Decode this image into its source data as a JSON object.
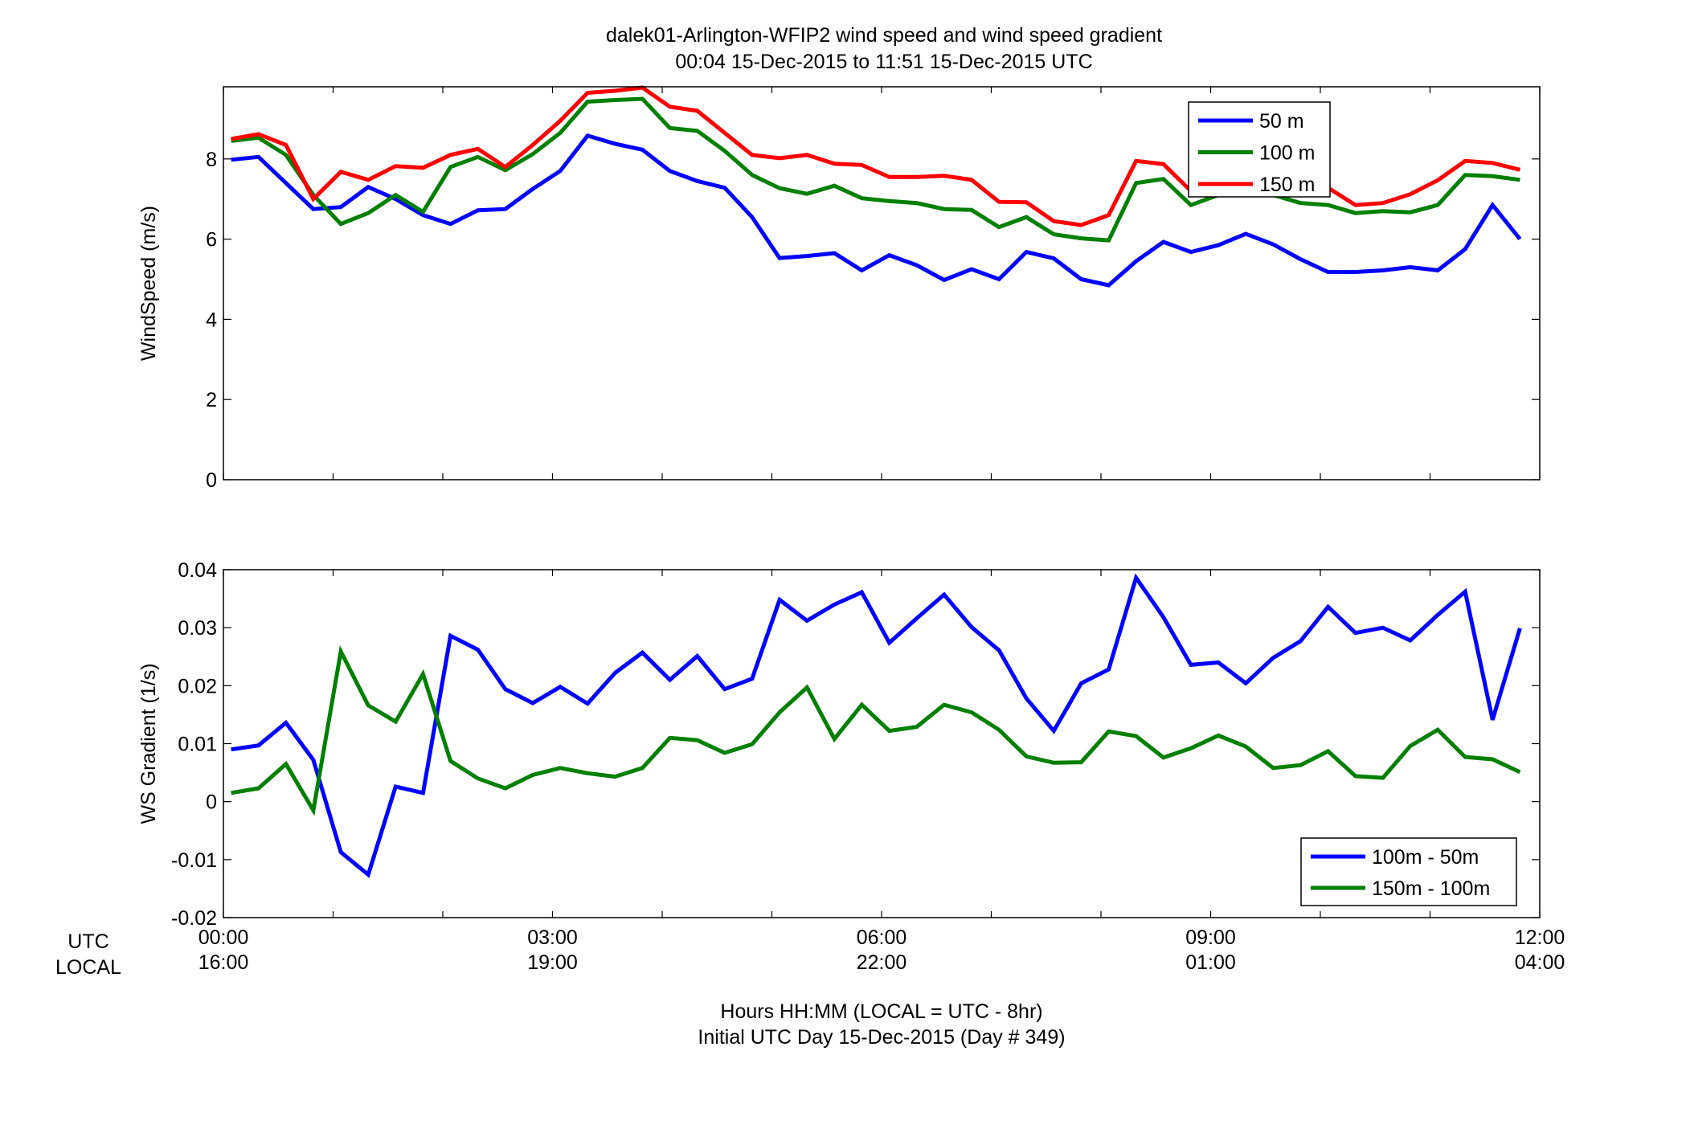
{
  "figure": {
    "title_line1": "dalek01-Arlington-WFIP2  wind speed and wind speed gradient",
    "title_line2": "00:04 15-Dec-2015 to 11:51 15-Dec-2015  UTC",
    "xlabel_line1": "Hours HH:MM  (LOCAL = UTC - 8hr)",
    "xlabel_line2": "Initial UTC Day 15-Dec-2015 (Day # 349)",
    "row_label_utc": "UTC",
    "row_label_local": "LOCAL",
    "utc_ticks": [
      "00:00",
      "03:00",
      "06:00",
      "09:00",
      "12:00"
    ],
    "local_ticks": [
      "16:00",
      "19:00",
      "22:00",
      "01:00",
      "04:00"
    ]
  },
  "chart_data": [
    {
      "type": "line",
      "ylabel": "WindSpeed (m/s)",
      "xlim": [
        0,
        12
      ],
      "ylim": [
        0,
        9.8
      ],
      "yticks": [
        0,
        2,
        4,
        6,
        8
      ],
      "grid": false,
      "legend_position": "top-right",
      "x": [
        0.07,
        0.32,
        0.57,
        0.82,
        1.07,
        1.32,
        1.57,
        1.82,
        2.07,
        2.32,
        2.57,
        2.82,
        3.07,
        3.32,
        3.57,
        3.82,
        4.07,
        4.32,
        4.57,
        4.82,
        5.07,
        5.32,
        5.57,
        5.82,
        6.07,
        6.32,
        6.57,
        6.82,
        7.07,
        7.32,
        7.57,
        7.82,
        8.07,
        8.32,
        8.57,
        8.82,
        9.07,
        9.32,
        9.57,
        9.82,
        10.07,
        10.32,
        10.57,
        10.82,
        11.07,
        11.32,
        11.57,
        11.82
      ],
      "series": [
        {
          "name": "50 m",
          "color": "#0000ff",
          "values": [
            7.98,
            8.05,
            7.4,
            6.75,
            6.8,
            7.3,
            7.0,
            6.6,
            6.38,
            6.72,
            6.75,
            7.25,
            7.7,
            8.58,
            8.38,
            8.23,
            7.7,
            7.45,
            7.28,
            6.55,
            5.53,
            5.58,
            5.65,
            5.22,
            5.6,
            5.35,
            4.98,
            5.25,
            5.0,
            5.68,
            5.52,
            5.0,
            4.85,
            5.45,
            5.93,
            5.68,
            5.85,
            6.13,
            5.87,
            5.5,
            5.18,
            5.18,
            5.22,
            5.3,
            5.22,
            5.75,
            6.85,
            6.0
          ]
        },
        {
          "name": "100 m",
          "color": "#007f00",
          "values": [
            8.45,
            8.53,
            8.1,
            7.1,
            6.38,
            6.65,
            7.1,
            6.68,
            7.8,
            8.05,
            7.72,
            8.12,
            8.65,
            9.43,
            9.47,
            9.5,
            8.77,
            8.7,
            8.2,
            7.6,
            7.27,
            7.13,
            7.33,
            7.02,
            6.95,
            6.9,
            6.75,
            6.73,
            6.3,
            6.55,
            6.12,
            6.02,
            5.97,
            7.4,
            7.5,
            6.85,
            7.1,
            7.4,
            7.1,
            6.9,
            6.85,
            6.65,
            6.7,
            6.67,
            6.85,
            7.6,
            7.57,
            7.48
          ]
        },
        {
          "name": "150 m",
          "color": "#ff0000",
          "values": [
            8.5,
            8.62,
            8.35,
            7.0,
            7.68,
            7.48,
            7.82,
            7.78,
            8.1,
            8.25,
            7.8,
            8.35,
            8.95,
            9.65,
            9.7,
            9.78,
            9.3,
            9.2,
            8.65,
            8.1,
            8.02,
            8.1,
            7.88,
            7.85,
            7.55,
            7.55,
            7.58,
            7.48,
            6.93,
            6.92,
            6.45,
            6.35,
            6.6,
            7.95,
            7.87,
            7.2,
            7.25,
            7.35,
            7.52,
            7.45,
            7.28,
            6.85,
            6.9,
            7.12,
            7.47,
            7.95,
            7.9,
            7.73
          ]
        }
      ]
    },
    {
      "type": "line",
      "ylabel": "WS Gradient (1/s)",
      "xlim": [
        0,
        12
      ],
      "ylim": [
        -0.02,
        0.04
      ],
      "yticks": [
        -0.02,
        -0.01,
        0,
        0.01,
        0.02,
        0.03,
        0.04
      ],
      "ytick_labels": [
        "-0.02",
        "-0.01",
        "0",
        "0.01",
        "0.02",
        "0.03",
        "0.04"
      ],
      "grid": false,
      "legend_position": "bottom-right",
      "x": [
        0.07,
        0.32,
        0.57,
        0.82,
        1.07,
        1.32,
        1.57,
        1.82,
        2.07,
        2.32,
        2.57,
        2.82,
        3.07,
        3.32,
        3.57,
        3.82,
        4.07,
        4.32,
        4.57,
        4.82,
        5.07,
        5.32,
        5.57,
        5.82,
        6.07,
        6.32,
        6.57,
        6.82,
        7.07,
        7.32,
        7.57,
        7.82,
        8.07,
        8.32,
        8.57,
        8.82,
        9.07,
        9.32,
        9.57,
        9.82,
        10.07,
        10.32,
        10.57,
        10.82,
        11.07,
        11.32,
        11.57,
        11.82
      ],
      "series": [
        {
          "name": "100m - 50m",
          "color": "#0000ff",
          "values": [
            0.009,
            0.0097,
            0.0136,
            0.0072,
            -0.0087,
            -0.0126,
            0.0026,
            0.0015,
            0.0286,
            0.0262,
            0.0194,
            0.017,
            0.0198,
            0.0169,
            0.0222,
            0.0257,
            0.021,
            0.0251,
            0.0194,
            0.0212,
            0.0348,
            0.0312,
            0.034,
            0.0361,
            0.0274,
            0.0316,
            0.0357,
            0.0301,
            0.0261,
            0.0178,
            0.0122,
            0.0204,
            0.0228,
            0.0386,
            0.0318,
            0.0236,
            0.024,
            0.0204,
            0.0248,
            0.0277,
            0.0336,
            0.0291,
            0.03,
            0.0278,
            0.0322,
            0.0362,
            0.0141,
            0.0299
          ]
        },
        {
          "name": "150m - 100m",
          "color": "#007f00",
          "values": [
            0.0015,
            0.0023,
            0.0065,
            -0.0015,
            0.0259,
            0.0166,
            0.0138,
            0.022,
            0.007,
            0.004,
            0.0023,
            0.0046,
            0.0058,
            0.0049,
            0.0043,
            0.0058,
            0.011,
            0.0106,
            0.0084,
            0.0099,
            0.0154,
            0.0197,
            0.0108,
            0.0167,
            0.0122,
            0.0129,
            0.0167,
            0.0154,
            0.0124,
            0.0078,
            0.0067,
            0.0068,
            0.0121,
            0.0113,
            0.0076,
            0.0092,
            0.0114,
            0.0095,
            0.0058,
            0.0063,
            0.0087,
            0.0044,
            0.0041,
            0.0096,
            0.0124,
            0.0077,
            0.0073,
            0.0051
          ]
        }
      ]
    }
  ]
}
